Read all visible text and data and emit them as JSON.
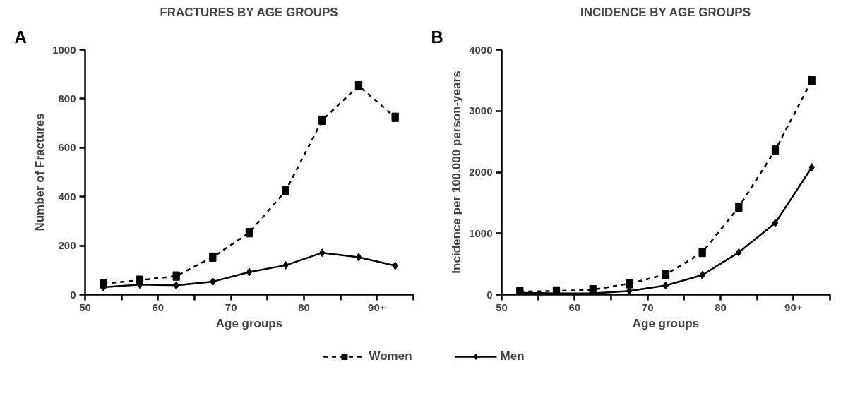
{
  "chart_data": [
    {
      "type": "line",
      "title": "FRACTURES BY AGE GROUPS",
      "xlabel": "Age groups",
      "ylabel": "Number of Fractures",
      "annotations": [
        "A"
      ],
      "x": [
        52.5,
        57.5,
        62.5,
        67.5,
        72.5,
        77.5,
        82.5,
        87.5,
        92.5
      ],
      "xlim": [
        50,
        95
      ],
      "xticks": [
        50,
        {
          "value": 55,
          "label": null
        },
        60,
        {
          "value": 65,
          "label": null
        },
        70,
        {
          "value": 75,
          "label": null
        },
        80,
        {
          "value": 85,
          "label": null
        },
        {
          "value": 90,
          "label": "90+"
        },
        {
          "value": 95,
          "label": null
        }
      ],
      "ylim": [
        0,
        1000
      ],
      "yticks": [
        0,
        200,
        400,
        600,
        800,
        1000
      ],
      "grid": false,
      "legend": "bottom",
      "series": [
        {
          "name": "Women",
          "color": "#000000",
          "marker": "square",
          "line_style": "dashed",
          "values": [
            45,
            59,
            76,
            153,
            253,
            424,
            712,
            853,
            724
          ]
        },
        {
          "name": "Men",
          "color": "#000000",
          "marker": "diamond",
          "line_style": "solid",
          "values": [
            30,
            41,
            38,
            53,
            92,
            120,
            171,
            153,
            118
          ]
        }
      ]
    },
    {
      "type": "line",
      "title": "INCIDENCE BY AGE GROUPS",
      "xlabel": "Age groups",
      "ylabel": "Incidence per 100.000 person-years",
      "annotations": [
        "B"
      ],
      "x": [
        52.5,
        57.5,
        62.5,
        67.5,
        72.5,
        77.5,
        82.5,
        87.5,
        92.5
      ],
      "xlim": [
        50,
        95
      ],
      "xticks": [
        50,
        {
          "value": 55,
          "label": null
        },
        60,
        {
          "value": 65,
          "label": null
        },
        70,
        {
          "value": 75,
          "label": null
        },
        80,
        {
          "value": 85,
          "label": null
        },
        {
          "value": 90,
          "label": "90+"
        },
        {
          "value": 95,
          "label": null
        }
      ],
      "ylim": [
        0,
        4000
      ],
      "yticks": [
        0,
        1000,
        2000,
        3000,
        4000
      ],
      "grid": false,
      "series": [
        {
          "color": "#000000",
          "marker": "square",
          "line_style": "dashed",
          "values": [
            50,
            60,
            80,
            180,
            330,
            690,
            1430,
            2360,
            3500
          ]
        },
        {
          "color": "#000000",
          "marker": "diamond",
          "line_style": "solid",
          "values": [
            30,
            20,
            20,
            60,
            150,
            320,
            690,
            1170,
            2080
          ]
        }
      ]
    }
  ]
}
